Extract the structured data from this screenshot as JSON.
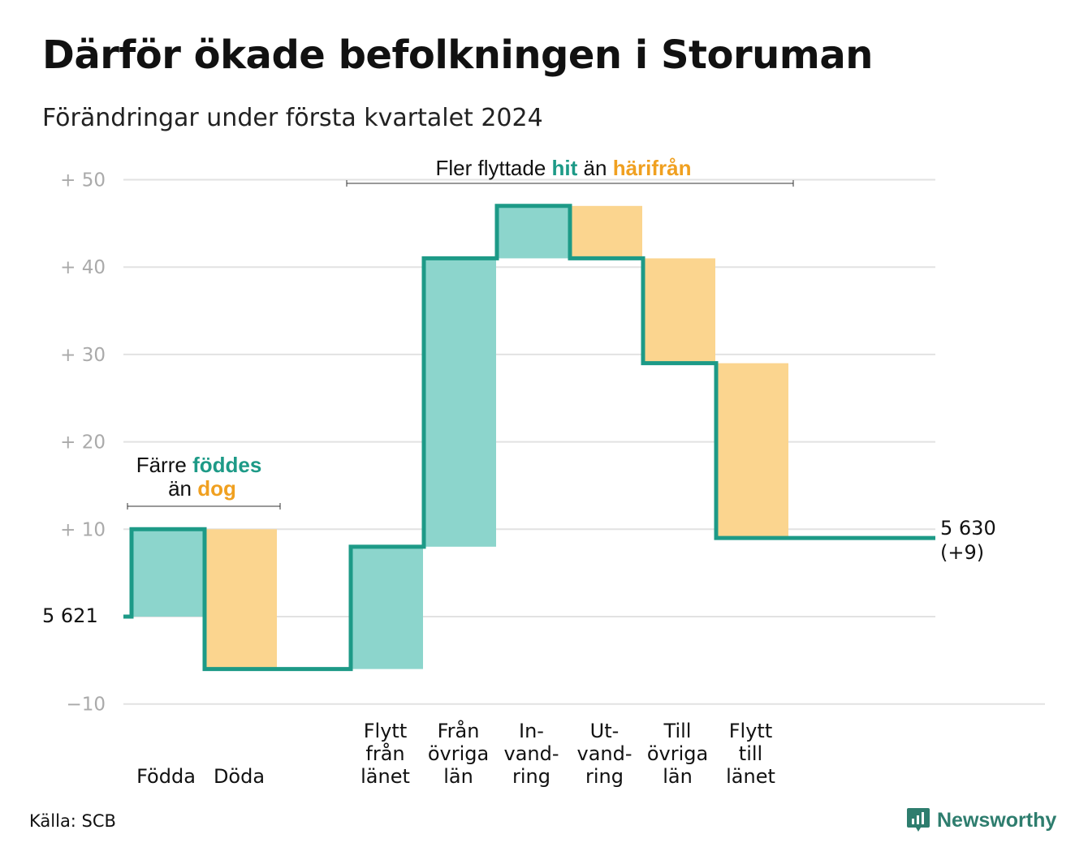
{
  "title": "Därför ökade befolkningen i Storuman",
  "subtitle": "Förändringar under första kvartalet 2024",
  "source": "Källa: SCB",
  "brand": "Newsworthy",
  "colors": {
    "increase": "#8cd5cc",
    "decrease": "#fbd58f",
    "line": "#1d9a87",
    "accent_orange": "#f0a020",
    "grid": "#e2e2e2",
    "tick": "#aaaaaa"
  },
  "chart_data": {
    "type": "waterfall",
    "start_label": "5  621",
    "start_value": 0,
    "end_label_1": "5 630",
    "end_label_2": "(+9)",
    "end_value": 9,
    "y_ticks": [
      {
        "value": 50,
        "label": "+  50"
      },
      {
        "value": 40,
        "label": "+  40"
      },
      {
        "value": 30,
        "label": "+  30"
      },
      {
        "value": 20,
        "label": "+  20"
      },
      {
        "value": 10,
        "label": "+  10"
      },
      {
        "value": 0,
        "label": ""
      },
      {
        "value": -10,
        "label": "−10"
      }
    ],
    "ylim": [
      -10,
      50
    ],
    "steps": [
      {
        "label": [
          "",
          "",
          "Födda"
        ],
        "from": 0,
        "to": 10,
        "kind": "increase",
        "slot": 0
      },
      {
        "label": [
          "",
          "",
          "Döda"
        ],
        "from": 10,
        "to": -6,
        "kind": "decrease",
        "slot": 1
      },
      {
        "label": [
          "Flytt",
          "från",
          "länet"
        ],
        "from": -6,
        "to": 8,
        "kind": "increase",
        "slot": 3
      },
      {
        "label": [
          "Från",
          "övriga",
          "län"
        ],
        "from": 8,
        "to": 41,
        "kind": "increase",
        "slot": 4
      },
      {
        "label": [
          "In-",
          "vand-",
          "ring"
        ],
        "from": 41,
        "to": 47,
        "kind": "increase",
        "slot": 5
      },
      {
        "label": [
          "Ut-",
          "vand-",
          "ring"
        ],
        "from": 47,
        "to": 41,
        "kind": "decrease",
        "slot": 6
      },
      {
        "label": [
          "Till",
          "övriga",
          "län"
        ],
        "from": 41,
        "to": 29,
        "kind": "decrease",
        "slot": 7
      },
      {
        "label": [
          "Flytt",
          "till",
          "länet"
        ],
        "from": 29,
        "to": 9,
        "kind": "decrease",
        "slot": 8
      }
    ],
    "annotations": {
      "births": {
        "pre": "Färre",
        "hit": "föddes",
        "line2_pre": "än",
        "line2_hit": "dog"
      },
      "moves": {
        "pre": "Fler flyttade",
        "hit": "hit",
        "mid": "än",
        "hit2": "härifrån"
      }
    }
  }
}
